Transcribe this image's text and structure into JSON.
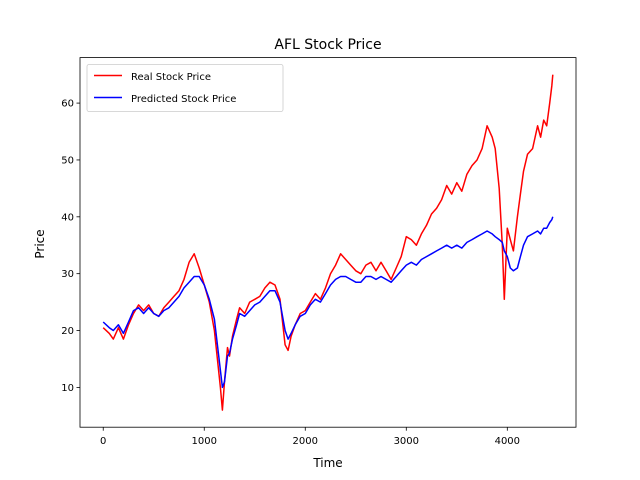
{
  "chart_data": {
    "type": "line",
    "title": "AFL Stock Price",
    "xlabel": "Time",
    "ylabel": "Price",
    "xlim": [
      -230,
      4680
    ],
    "ylim": [
      3,
      68
    ],
    "x_ticks": [
      0,
      1000,
      2000,
      3000,
      4000
    ],
    "y_ticks": [
      10,
      20,
      30,
      40,
      50,
      60
    ],
    "grid": false,
    "legend_position": "upper left",
    "series": [
      {
        "name": "Real Stock Price",
        "color": "#ff0000",
        "points": [
          [
            0,
            20.5
          ],
          [
            60,
            19.5
          ],
          [
            100,
            18.5
          ],
          [
            150,
            20.5
          ],
          [
            200,
            18.5
          ],
          [
            250,
            21
          ],
          [
            300,
            23
          ],
          [
            350,
            24.5
          ],
          [
            400,
            23.5
          ],
          [
            450,
            24.5
          ],
          [
            500,
            23
          ],
          [
            550,
            22.5
          ],
          [
            600,
            24
          ],
          [
            650,
            25
          ],
          [
            700,
            26
          ],
          [
            750,
            27
          ],
          [
            800,
            29
          ],
          [
            850,
            32
          ],
          [
            900,
            33.5
          ],
          [
            950,
            31
          ],
          [
            1000,
            28
          ],
          [
            1050,
            25
          ],
          [
            1100,
            20
          ],
          [
            1130,
            15
          ],
          [
            1160,
            10
          ],
          [
            1180,
            6
          ],
          [
            1200,
            11
          ],
          [
            1230,
            17
          ],
          [
            1250,
            15.5
          ],
          [
            1280,
            19
          ],
          [
            1320,
            22
          ],
          [
            1350,
            24
          ],
          [
            1400,
            23
          ],
          [
            1450,
            25
          ],
          [
            1500,
            25.5
          ],
          [
            1550,
            26
          ],
          [
            1600,
            27.5
          ],
          [
            1650,
            28.5
          ],
          [
            1700,
            28
          ],
          [
            1750,
            25.5
          ],
          [
            1800,
            17.5
          ],
          [
            1830,
            16.5
          ],
          [
            1860,
            19
          ],
          [
            1900,
            21
          ],
          [
            1950,
            23
          ],
          [
            2000,
            23.5
          ],
          [
            2050,
            25
          ],
          [
            2100,
            26.5
          ],
          [
            2150,
            25.5
          ],
          [
            2200,
            27.5
          ],
          [
            2250,
            30
          ],
          [
            2300,
            31.5
          ],
          [
            2350,
            33.5
          ],
          [
            2400,
            32.5
          ],
          [
            2450,
            31.5
          ],
          [
            2500,
            30.5
          ],
          [
            2550,
            30
          ],
          [
            2600,
            31.5
          ],
          [
            2650,
            32
          ],
          [
            2700,
            30.5
          ],
          [
            2750,
            32
          ],
          [
            2800,
            30.5
          ],
          [
            2850,
            29
          ],
          [
            2900,
            31
          ],
          [
            2950,
            33
          ],
          [
            3000,
            36.5
          ],
          [
            3050,
            36
          ],
          [
            3100,
            35
          ],
          [
            3150,
            37
          ],
          [
            3200,
            38.5
          ],
          [
            3250,
            40.5
          ],
          [
            3300,
            41.5
          ],
          [
            3350,
            43
          ],
          [
            3400,
            45.5
          ],
          [
            3450,
            44
          ],
          [
            3500,
            46
          ],
          [
            3550,
            44.5
          ],
          [
            3600,
            47.5
          ],
          [
            3650,
            49
          ],
          [
            3700,
            50
          ],
          [
            3750,
            52
          ],
          [
            3800,
            56
          ],
          [
            3850,
            54
          ],
          [
            3880,
            52
          ],
          [
            3920,
            45
          ],
          [
            3950,
            35
          ],
          [
            3970,
            25.5
          ],
          [
            4000,
            38
          ],
          [
            4030,
            36
          ],
          [
            4060,
            34
          ],
          [
            4100,
            40
          ],
          [
            4130,
            44
          ],
          [
            4160,
            48
          ],
          [
            4200,
            51
          ],
          [
            4250,
            52
          ],
          [
            4300,
            56
          ],
          [
            4330,
            54
          ],
          [
            4360,
            57
          ],
          [
            4390,
            56
          ],
          [
            4420,
            60
          ],
          [
            4440,
            63
          ],
          [
            4450,
            65
          ]
        ]
      },
      {
        "name": "Predicted Stock Price",
        "color": "#0000ff",
        "points": [
          [
            0,
            21.5
          ],
          [
            60,
            20.5
          ],
          [
            100,
            20
          ],
          [
            150,
            21
          ],
          [
            200,
            19.5
          ],
          [
            250,
            21.5
          ],
          [
            300,
            23.5
          ],
          [
            350,
            24
          ],
          [
            400,
            23
          ],
          [
            450,
            24
          ],
          [
            500,
            23
          ],
          [
            550,
            22.5
          ],
          [
            600,
            23.5
          ],
          [
            650,
            24
          ],
          [
            700,
            25
          ],
          [
            750,
            26
          ],
          [
            800,
            27.5
          ],
          [
            850,
            28.5
          ],
          [
            900,
            29.5
          ],
          [
            950,
            29.5
          ],
          [
            1000,
            28
          ],
          [
            1050,
            25.5
          ],
          [
            1100,
            22
          ],
          [
            1130,
            17.5
          ],
          [
            1160,
            13
          ],
          [
            1180,
            10
          ],
          [
            1200,
            11
          ],
          [
            1230,
            15.5
          ],
          [
            1250,
            16
          ],
          [
            1280,
            18.5
          ],
          [
            1320,
            21
          ],
          [
            1350,
            23
          ],
          [
            1400,
            22.5
          ],
          [
            1450,
            23.5
          ],
          [
            1500,
            24.5
          ],
          [
            1550,
            25
          ],
          [
            1600,
            26
          ],
          [
            1650,
            27
          ],
          [
            1700,
            27
          ],
          [
            1750,
            25
          ],
          [
            1800,
            20
          ],
          [
            1830,
            18.5
          ],
          [
            1860,
            19.5
          ],
          [
            1900,
            21
          ],
          [
            1950,
            22.5
          ],
          [
            2000,
            23
          ],
          [
            2050,
            24.5
          ],
          [
            2100,
            25.5
          ],
          [
            2150,
            25
          ],
          [
            2200,
            26.5
          ],
          [
            2250,
            28
          ],
          [
            2300,
            29
          ],
          [
            2350,
            29.5
          ],
          [
            2400,
            29.5
          ],
          [
            2450,
            29
          ],
          [
            2500,
            28.5
          ],
          [
            2550,
            28.5
          ],
          [
            2600,
            29.5
          ],
          [
            2650,
            29.5
          ],
          [
            2700,
            29
          ],
          [
            2750,
            29.5
          ],
          [
            2800,
            29
          ],
          [
            2850,
            28.5
          ],
          [
            2900,
            29.5
          ],
          [
            2950,
            30.5
          ],
          [
            3000,
            31.5
          ],
          [
            3050,
            32
          ],
          [
            3100,
            31.5
          ],
          [
            3150,
            32.5
          ],
          [
            3200,
            33
          ],
          [
            3250,
            33.5
          ],
          [
            3300,
            34
          ],
          [
            3350,
            34.5
          ],
          [
            3400,
            35
          ],
          [
            3450,
            34.5
          ],
          [
            3500,
            35
          ],
          [
            3550,
            34.5
          ],
          [
            3600,
            35.5
          ],
          [
            3650,
            36
          ],
          [
            3700,
            36.5
          ],
          [
            3750,
            37
          ],
          [
            3800,
            37.5
          ],
          [
            3850,
            37
          ],
          [
            3880,
            36.5
          ],
          [
            3920,
            36
          ],
          [
            3950,
            35.5
          ],
          [
            3970,
            34
          ],
          [
            4000,
            33
          ],
          [
            4030,
            31
          ],
          [
            4060,
            30.5
          ],
          [
            4100,
            31
          ],
          [
            4130,
            33
          ],
          [
            4160,
            35
          ],
          [
            4200,
            36.5
          ],
          [
            4250,
            37
          ],
          [
            4300,
            37.5
          ],
          [
            4330,
            37
          ],
          [
            4360,
            38
          ],
          [
            4390,
            38
          ],
          [
            4420,
            39
          ],
          [
            4440,
            39.5
          ],
          [
            4450,
            40
          ]
        ]
      }
    ]
  }
}
